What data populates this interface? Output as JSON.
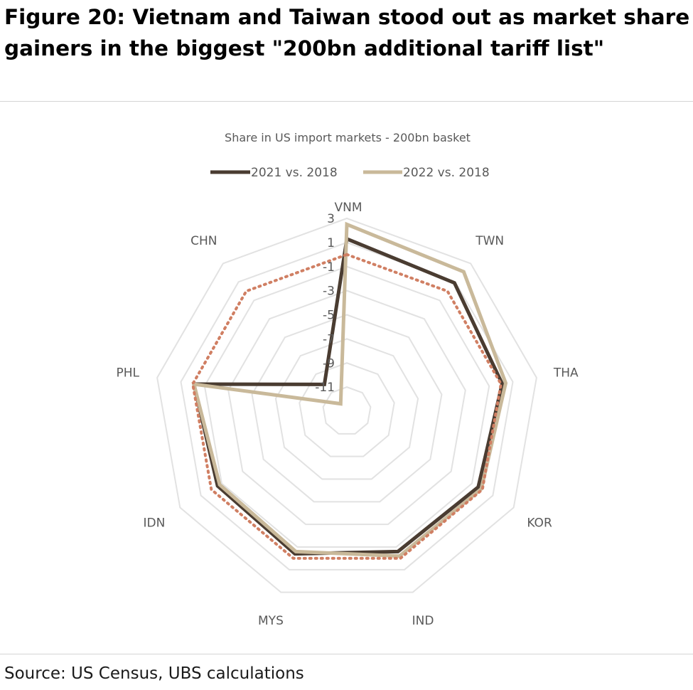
{
  "figure": {
    "title": "Figure 20: Vietnam and Taiwan stood out as market share gainers in the biggest \"200bn additional tariff list\"",
    "source": "Source: US Census, UBS calculations"
  },
  "chart_data": {
    "type": "radar",
    "title": "Share in US import markets - 200bn basket",
    "categories": [
      "VNM",
      "TWN",
      "THA",
      "KOR",
      "IND",
      "MYS",
      "IDN",
      "PHL",
      "CHN"
    ],
    "rlim": [
      -13,
      3
    ],
    "rticks": [
      3,
      1,
      -1,
      -3,
      -5,
      -7,
      -9,
      -11
    ],
    "grid": true,
    "legend_position": "top",
    "series": [
      {
        "name": "2021 vs. 2018",
        "color": "#4a3c31",
        "style": "solid",
        "values": [
          1.3,
          0.9,
          0.1,
          -0.4,
          -0.6,
          -0.4,
          -0.6,
          -0.1,
          -10.1
        ]
      },
      {
        "name": "2022 vs. 2018",
        "color": "#c9b99a",
        "style": "solid",
        "values": [
          2.5,
          2.1,
          0.4,
          -0.1,
          -0.2,
          -0.6,
          -0.8,
          -0.1,
          -12.2
        ]
      },
      {
        "color": "#d07f63",
        "style": "dotted",
        "values": [
          0,
          0,
          0,
          0,
          0,
          0,
          0,
          0,
          0
        ]
      }
    ]
  }
}
